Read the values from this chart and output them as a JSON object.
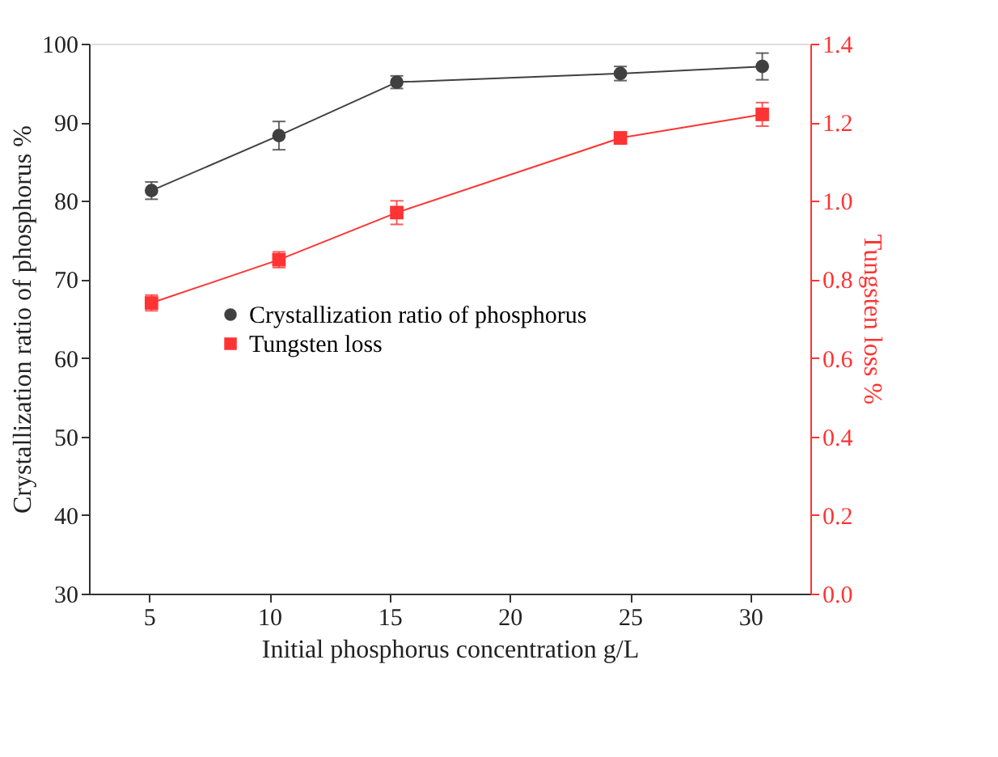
{
  "chart_data": {
    "type": "line",
    "xlabel": "Initial phosphorus concentration g/L",
    "ylabel": "Crystallization ratio of phosphorus %",
    "y2label": "Tungsten loss %",
    "xlim": [
      2.5,
      32.5
    ],
    "xticks": [
      5,
      10,
      15,
      20,
      25,
      30
    ],
    "ylim": [
      30,
      100
    ],
    "yticks": [
      30,
      40,
      50,
      60,
      70,
      80,
      90,
      100
    ],
    "y2lim": [
      0,
      1.4
    ],
    "y2ticks": [
      {
        "value": 0,
        "label": "0.0"
      },
      {
        "value": 0.2,
        "label": "0.2"
      },
      {
        "value": 0.4,
        "label": "0.4"
      },
      {
        "value": 0.6,
        "label": "0.6"
      },
      {
        "value": 0.8,
        "label": "0.8"
      },
      {
        "value": 1.0,
        "label": "1.0"
      },
      {
        "value": 1.2,
        "label": "1.2"
      },
      {
        "value": 1.4,
        "label": "1.4"
      }
    ],
    "x": [
      5.1,
      10.4,
      15.3,
      24.6,
      30.5
    ],
    "series": [
      {
        "name": "Crystallization ratio of phosphorus",
        "color": "#404040",
        "marker": "circle",
        "values": [
          81.3,
          88.3,
          95.1,
          96.2,
          97.1
        ],
        "errors": [
          1.1,
          1.8,
          0.8,
          0.9,
          1.7
        ]
      },
      {
        "name": "Tungsten loss",
        "color": "#ff3333",
        "marker": "square",
        "axis": "y2",
        "values": [
          0.74,
          0.85,
          0.97,
          1.16,
          1.22
        ],
        "errors": [
          0.02,
          0.02,
          0.03,
          0.015,
          0.03
        ]
      }
    ],
    "legend": "left",
    "grid": false,
    "line_style": "solid"
  }
}
